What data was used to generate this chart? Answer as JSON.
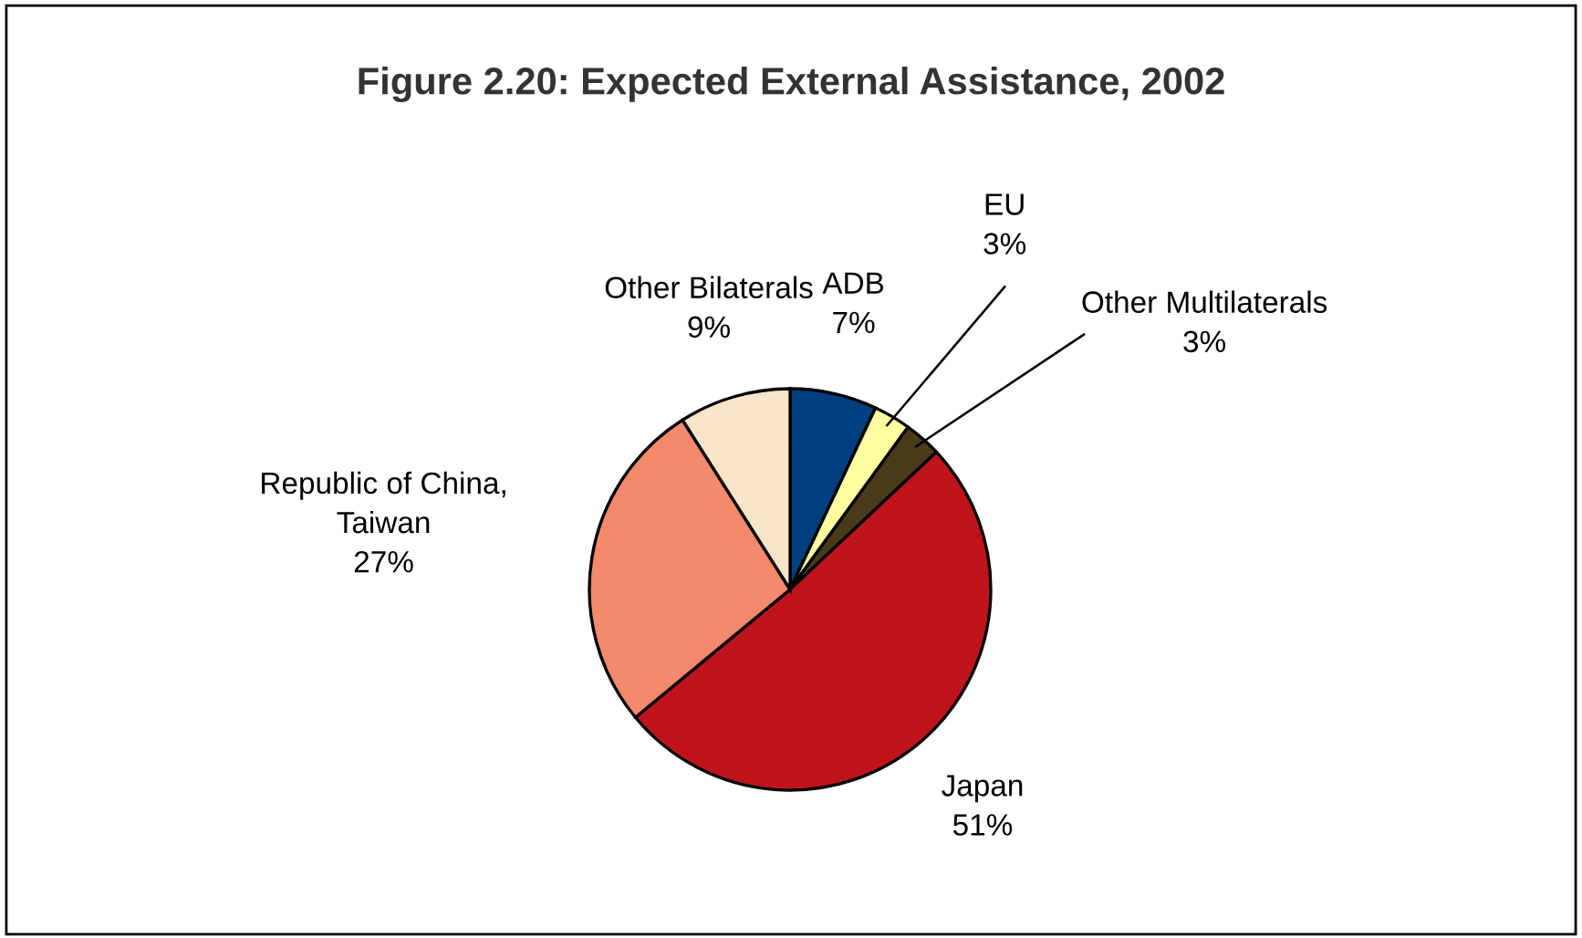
{
  "chart_data": {
    "type": "pie",
    "title": "Figure 2.20: Expected External Assistance, 2002",
    "categories": [
      "ADB",
      "EU",
      "Other Multilaterals",
      "Japan",
      "Republic of China,\nTaiwan",
      "Other Bilaterals"
    ],
    "values": [
      7,
      3,
      3,
      51,
      27,
      9
    ],
    "value_labels": [
      "7%",
      "3%",
      "3%",
      "51%",
      "27%",
      "9%"
    ],
    "colors": [
      "#003f7f",
      "#ffffa0",
      "#4a3a1a",
      "#c0141c",
      "#f4896b",
      "#fbe5c8"
    ],
    "legend": false
  }
}
